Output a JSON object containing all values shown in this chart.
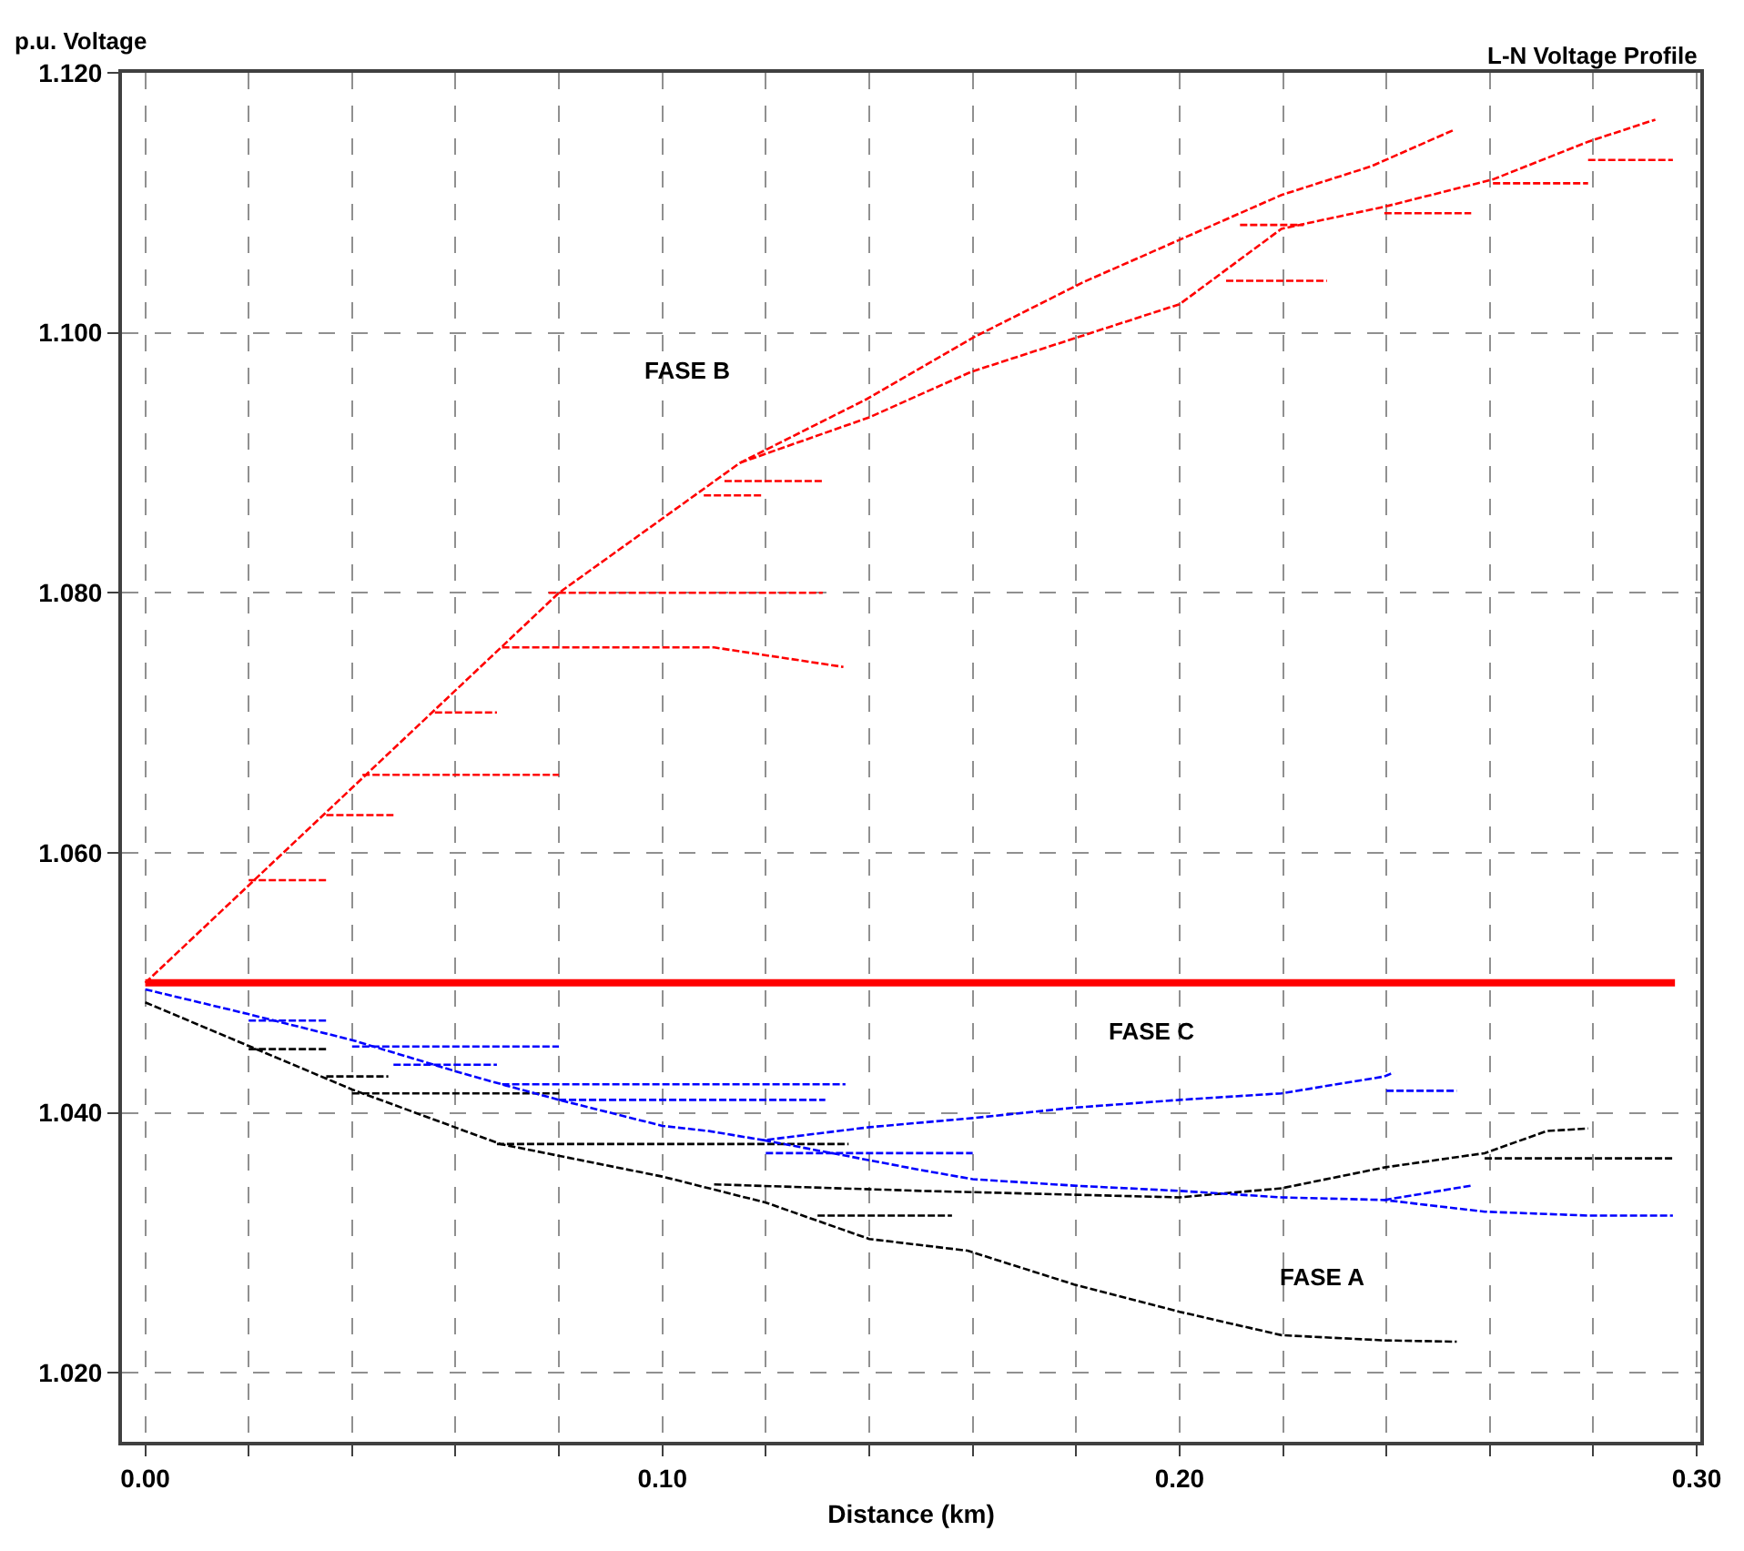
{
  "chart_data": {
    "type": "line",
    "title": "L-N Voltage Profile",
    "ylabel": "p.u. Voltage",
    "xlabel": "Distance (km)",
    "xlim": [
      -0.0045,
      0.3007
    ],
    "ylim": [
      1.0147,
      1.12
    ],
    "xticks": [
      {
        "value": 0,
        "label": "0.00"
      },
      {
        "value": 0.02,
        "label": null
      },
      {
        "value": 0.04,
        "label": null
      },
      {
        "value": 0.06,
        "label": null
      },
      {
        "value": 0.08,
        "label": null
      },
      {
        "value": 0.1,
        "label": "0.10"
      },
      {
        "value": 0.12,
        "label": null
      },
      {
        "value": 0.14,
        "label": null
      },
      {
        "value": 0.16,
        "label": null
      },
      {
        "value": 0.18,
        "label": null
      },
      {
        "value": 0.2,
        "label": "0.20"
      },
      {
        "value": 0.22,
        "label": null
      },
      {
        "value": 0.24,
        "label": null
      },
      {
        "value": 0.26,
        "label": null
      },
      {
        "value": 0.28,
        "label": null
      },
      {
        "value": 0.3,
        "label": "0.30"
      }
    ],
    "yticks": [
      {
        "value": 1.02,
        "label": "1.020"
      },
      {
        "value": 1.04,
        "label": "1.040"
      },
      {
        "value": 1.06,
        "label": "1.060"
      },
      {
        "value": 1.08,
        "label": "1.080"
      },
      {
        "value": 1.1,
        "label": "1.100"
      },
      {
        "value": 1.12,
        "label": "1.120"
      }
    ],
    "grid": true,
    "marker": "none",
    "line_style": "dashed",
    "annotations": [
      "FASE B",
      "FASE C",
      "FASE A"
    ],
    "series": [
      {
        "color": "#ff0000",
        "line_style": "solid",
        "x": [
          0,
          0.2958
        ],
        "values": [
          1.05,
          1.05
        ]
      },
      {
        "color": "#ff0000",
        "x": [
          0,
          0.08,
          0.115,
          0.1395,
          0.1604,
          0.1814,
          0.2197,
          0.237,
          0.253
        ],
        "values": [
          1.05,
          1.08,
          1.09,
          1.0949,
          1.0997,
          1.1039,
          1.1106,
          1.1128,
          1.1156
        ]
      },
      {
        "color": "#ff0000",
        "x": [
          0.115,
          0.14,
          0.1597,
          0.2,
          0.2197,
          0.2396,
          0.2606,
          0.279,
          0.292
        ],
        "values": [
          1.09,
          1.0935,
          1.097,
          1.1022,
          1.108,
          1.1097,
          1.1118,
          1.1147,
          1.1164
        ]
      },
      {
        "color": "#ff0000",
        "x": [
          0.078,
          0.131
        ],
        "values": [
          1.08,
          1.08
        ]
      },
      {
        "color": "#ff0000",
        "x": [
          0.069,
          0.11,
          0.135
        ],
        "values": [
          1.0758,
          1.0758,
          1.0743
        ]
      },
      {
        "color": "#ff0000",
        "x": [
          0.056,
          0.068
        ],
        "values": [
          1.0708,
          1.0708
        ]
      },
      {
        "color": "#ff0000",
        "x": [
          0.042,
          0.08
        ],
        "values": [
          1.066,
          1.066
        ]
      },
      {
        "color": "#ff0000",
        "x": [
          0.035,
          0.048
        ],
        "values": [
          1.0629,
          1.0629
        ]
      },
      {
        "color": "#ff0000",
        "x": [
          0.02,
          0.035
        ],
        "values": [
          1.0579,
          1.0579
        ]
      },
      {
        "color": "#ff0000",
        "x": [
          0.108,
          0.1196
        ],
        "values": [
          1.0875,
          1.0875
        ]
      },
      {
        "color": "#ff0000",
        "x": [
          0.112,
          0.131
        ],
        "values": [
          1.0886,
          1.0886
        ]
      },
      {
        "color": "#ff0000",
        "x": [
          0.279,
          0.2954
        ],
        "values": [
          1.1133,
          1.1133
        ]
      },
      {
        "color": "#ff0000",
        "x": [
          0.2606,
          0.279
        ],
        "values": [
          1.1115,
          1.1115
        ]
      },
      {
        "color": "#ff0000",
        "x": [
          0.2396,
          0.2564
        ],
        "values": [
          1.1092,
          1.1092
        ]
      },
      {
        "color": "#ff0000",
        "x": [
          0.2117,
          0.224
        ],
        "values": [
          1.1083,
          1.1083
        ]
      },
      {
        "color": "#ff0000",
        "x": [
          0.209,
          0.2285
        ],
        "values": [
          1.104,
          1.104
        ]
      },
      {
        "color": "#000000",
        "x": [
          0,
          0.04,
          0.0687,
          0.1,
          0.12,
          0.14,
          0.159,
          0.1796,
          0.2,
          0.2197,
          0.2396,
          0.2536
        ],
        "values": [
          1.0485,
          1.0418,
          1.0376,
          1.0351,
          1.0331,
          1.0303,
          1.0294,
          1.0268,
          1.0247,
          1.0229,
          1.0225,
          1.0224
        ]
      },
      {
        "color": "#000000",
        "x": [
          0.11,
          0.15,
          0.2,
          0.2197,
          0.2396,
          0.259,
          0.271,
          0.279
        ],
        "values": [
          1.0345,
          1.034,
          1.0335,
          1.0342,
          1.0358,
          1.0369,
          1.0386,
          1.0388
        ]
      },
      {
        "color": "#000000",
        "x": [
          0.259,
          0.2955
        ],
        "values": [
          1.0365,
          1.0365
        ]
      },
      {
        "color": "#000000",
        "x": [
          0.068,
          0.136
        ],
        "values": [
          1.0376,
          1.0376
        ]
      },
      {
        "color": "#000000",
        "x": [
          0.04,
          0.08
        ],
        "values": [
          1.0415,
          1.0415
        ]
      },
      {
        "color": "#000000",
        "x": [
          0.035,
          0.047
        ],
        "values": [
          1.0428,
          1.0428
        ]
      },
      {
        "color": "#000000",
        "x": [
          0.02,
          0.035
        ],
        "values": [
          1.0449,
          1.0449
        ]
      },
      {
        "color": "#000000",
        "x": [
          0.13,
          0.156
        ],
        "values": [
          1.0321,
          1.0321
        ]
      },
      {
        "color": "#0000ff",
        "x": [
          0,
          0.0199,
          0.04,
          0.06,
          0.0698,
          0.08,
          0.1,
          0.109,
          0.1196,
          0.14,
          0.16,
          0.1796,
          0.2,
          0.2197,
          0.2396,
          0.2414
        ],
        "values": [
          1.0495,
          1.0476,
          1.0456,
          1.0432,
          1.0421,
          1.041,
          1.039,
          1.0386,
          1.0379,
          1.0389,
          1.0396,
          1.0404,
          1.041,
          1.0415,
          1.0428,
          1.0431
        ]
      },
      {
        "color": "#0000ff",
        "x": [
          0.1196,
          0.15,
          0.16,
          0.1796,
          0.2,
          0.2197,
          0.2396,
          0.259,
          0.279,
          0.2954
        ],
        "values": [
          1.0379,
          1.0356,
          1.0349,
          1.0344,
          1.034,
          1.0335,
          1.0333,
          1.0324,
          1.0321,
          1.0321
        ]
      },
      {
        "color": "#0000ff",
        "x": [
          0.2396,
          0.2564
        ],
        "values": [
          1.0333,
          1.0344
        ]
      },
      {
        "color": "#0000ff",
        "x": [
          0.24,
          0.2536
        ],
        "values": [
          1.0417,
          1.0417
        ]
      },
      {
        "color": "#0000ff",
        "x": [
          0.02,
          0.035
        ],
        "values": [
          1.0471,
          1.0471
        ]
      },
      {
        "color": "#0000ff",
        "x": [
          0.04,
          0.08
        ],
        "values": [
          1.0451,
          1.0451
        ]
      },
      {
        "color": "#0000ff",
        "x": [
          0.048,
          0.068
        ],
        "values": [
          1.0437,
          1.0437
        ]
      },
      {
        "color": "#0000ff",
        "x": [
          0.069,
          0.1354
        ],
        "values": [
          1.0422,
          1.0422
        ]
      },
      {
        "color": "#0000ff",
        "x": [
          0.08,
          0.1315
        ],
        "values": [
          1.041,
          1.041
        ]
      },
      {
        "color": "#0000ff",
        "x": [
          0.12,
          0.16
        ],
        "values": [
          1.0369,
          1.0369
        ]
      }
    ]
  }
}
